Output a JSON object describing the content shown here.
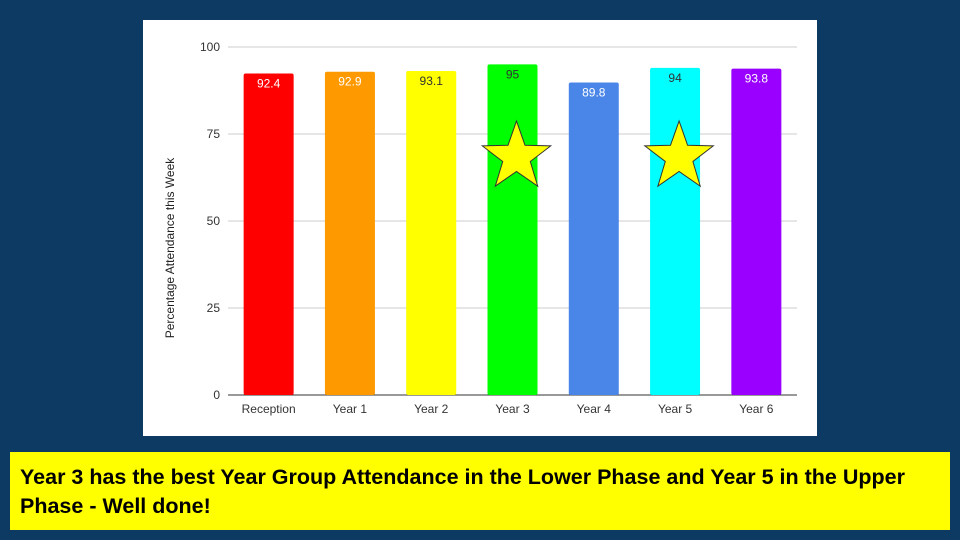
{
  "slide": {
    "background": "#0d3a63",
    "banner_text": "Year 3 has the best Year Group Attendance in the Lower Phase and Year 5 in the Upper Phase - Well done!",
    "banner_color": "#ffff00"
  },
  "chart_data": {
    "type": "bar",
    "title": "",
    "xlabel": "",
    "ylabel": "Percentage Attendance this Week",
    "ylim": [
      0,
      100
    ],
    "yticks": [
      0,
      25,
      50,
      75,
      100
    ],
    "grid": true,
    "categories": [
      "Reception",
      "Year 1",
      "Year 2",
      "Year 3",
      "Year 4",
      "Year 5",
      "Year 6"
    ],
    "values": [
      92.4,
      92.9,
      93.1,
      95,
      89.8,
      94,
      93.8
    ],
    "data_labels": [
      "92.4",
      "92.9",
      "93.1",
      "95",
      "89.8",
      "94",
      "93.8"
    ],
    "colors": [
      "#ff0000",
      "#ff9900",
      "#ffff00",
      "#00ff00",
      "#4a86e8",
      "#00ffff",
      "#9900ff"
    ],
    "label_colors": [
      "#ffffff",
      "#ffffff",
      "#333333",
      "#333333",
      "#ffffff",
      "#333333",
      "#ffffff"
    ],
    "annotations": [
      {
        "type": "star",
        "category": "Year 3",
        "color": "#ffff00"
      },
      {
        "type": "star",
        "category": "Year 5",
        "color": "#ffff00"
      }
    ]
  }
}
